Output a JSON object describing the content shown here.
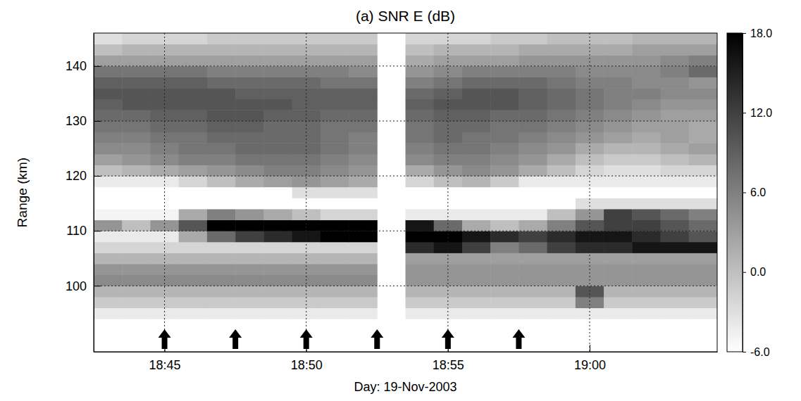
{
  "chart_data": {
    "type": "heatmap",
    "title": "(a) SNR E (dB)",
    "x_label": "Day: 19-Nov-2003",
    "y_label": "Range (km)",
    "xlim": [
      1122.5,
      1144.5
    ],
    "ylim": [
      88,
      146
    ],
    "xticks": [
      {
        "value": 1125,
        "label": "18:45"
      },
      {
        "value": 1130,
        "label": "18:50"
      },
      {
        "value": 1135,
        "label": "18:55"
      },
      {
        "value": 1140,
        "label": "19:00"
      }
    ],
    "yticks": [
      100,
      110,
      120,
      130,
      140
    ],
    "grid": true,
    "x": [
      1123,
      1124,
      1125,
      1126,
      1127,
      1128,
      1129,
      1130,
      1131,
      1132,
      1133,
      1134,
      1135,
      1136,
      1137,
      1138,
      1139,
      1140,
      1141,
      1142,
      1143,
      1144
    ],
    "y": [
      89,
      91,
      93,
      95,
      97,
      99,
      101,
      103,
      105,
      107,
      109,
      111,
      113,
      115,
      117,
      119,
      121,
      123,
      125,
      127,
      129,
      131,
      133,
      135,
      137,
      139,
      141,
      143,
      145
    ],
    "cells": [
      [
        -6,
        -6,
        -6,
        -6,
        -6,
        -6,
        -6,
        -6,
        -6,
        -6,
        null,
        -6,
        -6,
        -6,
        -6,
        -6,
        -6,
        -6,
        -6,
        -6,
        -6,
        -6
      ],
      [
        -6,
        -6,
        -6,
        -6,
        -6,
        -6,
        -6,
        -6,
        -6,
        -6,
        null,
        -6,
        -6,
        -6,
        -6,
        -6,
        -6,
        -6,
        -6,
        -6,
        -6,
        -6
      ],
      [
        -6,
        -6,
        -6,
        -6,
        -6,
        -6,
        -6,
        -6,
        -6,
        -6,
        null,
        -6,
        -6,
        -6,
        -6,
        -6,
        -6,
        -6,
        -6,
        -6,
        -6,
        -6
      ],
      [
        -4,
        -4,
        -4,
        -4,
        -4,
        -4,
        -4,
        -4,
        -4,
        -4,
        null,
        -4,
        -4,
        -4,
        -4,
        -4,
        -4,
        -4,
        -4,
        -4,
        -4,
        -4
      ],
      [
        -1,
        -1,
        -1,
        -1,
        -1,
        -1,
        -1,
        -1,
        -1,
        -1,
        null,
        -1,
        -1,
        -1,
        -1,
        -1,
        -1,
        6,
        -1,
        -1,
        -1,
        -1
      ],
      [
        1,
        1,
        1,
        1,
        1,
        1,
        1,
        1,
        1,
        1,
        null,
        1,
        1,
        1,
        1,
        1,
        1,
        10,
        1,
        1,
        1,
        1
      ],
      [
        5,
        5,
        5,
        5,
        5,
        5,
        5,
        5,
        5,
        5,
        null,
        4,
        4,
        4,
        4,
        4,
        4,
        4,
        4,
        4,
        4,
        4
      ],
      [
        4,
        4,
        4,
        4,
        4,
        4,
        4,
        4,
        4,
        4,
        null,
        4,
        4,
        4,
        4,
        4,
        4,
        4,
        4,
        4,
        4,
        4
      ],
      [
        1,
        1,
        1,
        1,
        1,
        1,
        1,
        1,
        1,
        1,
        null,
        3,
        3,
        3,
        3,
        3,
        3,
        3,
        3,
        3,
        3,
        3
      ],
      [
        -2,
        -2,
        -2,
        -2,
        -2,
        -2,
        -2,
        -2,
        -2,
        -2,
        null,
        14,
        16,
        12,
        6,
        8,
        12,
        14,
        14,
        16,
        16,
        16
      ],
      [
        -4,
        -4,
        -4,
        2,
        8,
        12,
        14,
        16,
        18,
        18,
        null,
        18,
        18,
        16,
        14,
        12,
        14,
        16,
        16,
        14,
        12,
        10
      ],
      [
        4,
        0,
        4,
        10,
        18,
        18,
        18,
        18,
        18,
        18,
        null,
        16,
        8,
        2,
        0,
        2,
        6,
        10,
        12,
        12,
        10,
        8
      ],
      [
        -5,
        -5,
        -5,
        2,
        6,
        4,
        2,
        0,
        -2,
        -2,
        null,
        -4,
        -4,
        -4,
        -4,
        -4,
        0,
        4,
        12,
        10,
        8,
        6
      ],
      [
        -6,
        -6,
        -6,
        -6,
        -6,
        -6,
        -6,
        -6,
        -6,
        -6,
        null,
        -6,
        -6,
        -6,
        -6,
        -6,
        -6,
        -3,
        -3,
        -3,
        -3,
        -3
      ],
      [
        -6,
        -6,
        -6,
        -6,
        -6,
        -6,
        -6,
        -3,
        -3,
        -3,
        null,
        -6,
        -6,
        -6,
        -6,
        -6,
        -6,
        -6,
        -6,
        -6,
        -6,
        -6
      ],
      [
        -4,
        -4,
        -4,
        -2,
        0,
        2,
        3,
        4,
        3,
        2,
        null,
        -2,
        0,
        1,
        -1,
        -4,
        -4,
        -4,
        -4,
        -4,
        -4,
        -4
      ],
      [
        0,
        1,
        2,
        3,
        4,
        5,
        6,
        6,
        5,
        4,
        null,
        2,
        4,
        5,
        4,
        2,
        0,
        -2,
        -3,
        -3,
        -2,
        -2
      ],
      [
        3,
        4,
        5,
        6,
        6,
        7,
        7,
        7,
        6,
        5,
        null,
        5,
        6,
        6,
        5,
        4,
        2,
        0,
        -1,
        -1,
        0,
        1
      ],
      [
        5,
        5,
        6,
        7,
        7,
        8,
        8,
        8,
        7,
        6,
        null,
        6,
        7,
        7,
        6,
        5,
        4,
        2,
        1,
        1,
        2,
        3
      ],
      [
        6,
        6,
        7,
        7,
        8,
        8,
        8,
        8,
        7,
        6,
        null,
        7,
        8,
        7,
        7,
        6,
        5,
        4,
        3,
        2,
        3,
        2
      ],
      [
        7,
        7,
        8,
        8,
        9,
        9,
        8,
        8,
        7,
        7,
        null,
        7,
        8,
        8,
        7,
        7,
        6,
        5,
        4,
        3,
        3,
        2
      ],
      [
        8,
        8,
        9,
        9,
        10,
        10,
        9,
        9,
        8,
        8,
        null,
        8,
        9,
        9,
        8,
        8,
        7,
        6,
        5,
        4,
        3,
        3
      ],
      [
        9,
        10,
        10,
        10,
        10,
        10,
        10,
        9,
        9,
        9,
        null,
        9,
        10,
        10,
        10,
        9,
        8,
        7,
        6,
        5,
        4,
        4
      ],
      [
        10,
        10,
        10,
        10,
        10,
        9,
        9,
        9,
        9,
        9,
        null,
        8,
        9,
        10,
        10,
        9,
        8,
        7,
        6,
        6,
        5,
        5
      ],
      [
        9,
        9,
        9,
        9,
        8,
        8,
        8,
        8,
        7,
        7,
        null,
        6,
        7,
        8,
        8,
        8,
        7,
        6,
        6,
        5,
        5,
        4
      ],
      [
        7,
        7,
        7,
        7,
        6,
        6,
        6,
        6,
        6,
        5,
        null,
        4,
        5,
        6,
        6,
        6,
        6,
        5,
        5,
        5,
        6,
        8
      ],
      [
        3,
        3,
        3,
        3,
        3,
        3,
        3,
        3,
        3,
        3,
        null,
        2,
        3,
        3,
        3,
        4,
        4,
        4,
        4,
        4,
        5,
        6
      ],
      [
        0,
        1,
        1,
        1,
        1,
        1,
        1,
        1,
        1,
        1,
        null,
        0,
        1,
        1,
        1,
        2,
        2,
        2,
        2,
        3,
        3,
        3
      ],
      [
        -3,
        -2,
        -2,
        -2,
        -1,
        -1,
        -1,
        -1,
        -1,
        -1,
        null,
        -2,
        -2,
        -2,
        -1,
        -1,
        0,
        0,
        0,
        1,
        1,
        1
      ]
    ],
    "arrows": [
      1125,
      1127.5,
      1130,
      1132.5,
      1135,
      1137.5
    ],
    "colorbar": {
      "range": [
        -6,
        18
      ],
      "ticks": [
        {
          "value": -6,
          "label": "-6.0"
        },
        {
          "value": 0,
          "label": "0.0"
        },
        {
          "value": 6,
          "label": "6.0"
        },
        {
          "value": 12,
          "label": "12.0"
        },
        {
          "value": 18,
          "label": "18.0"
        }
      ]
    }
  }
}
